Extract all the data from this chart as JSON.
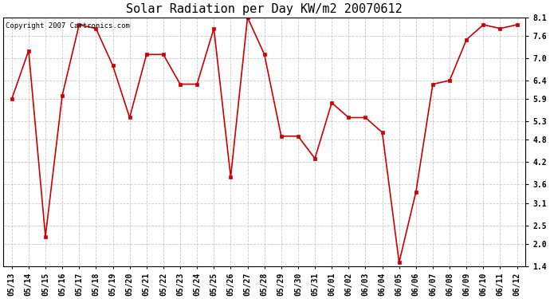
{
  "title": "Solar Radiation per Day KW/m2 20070612",
  "copyright": "Copyright 2007 Cartronics.com",
  "x_labels": [
    "05/13",
    "05/14",
    "05/15",
    "05/16",
    "05/17",
    "05/18",
    "05/19",
    "05/20",
    "05/21",
    "05/22",
    "05/23",
    "05/24",
    "05/25",
    "05/26",
    "05/27",
    "05/28",
    "05/29",
    "05/30",
    "05/31",
    "06/01",
    "06/02",
    "06/03",
    "06/04",
    "06/05",
    "06/06",
    "06/07",
    "06/08",
    "06/09",
    "06/10",
    "06/11",
    "06/12"
  ],
  "y_values": [
    5.9,
    7.2,
    2.2,
    6.0,
    7.9,
    7.8,
    6.8,
    5.4,
    7.1,
    7.1,
    6.3,
    6.3,
    7.8,
    3.8,
    8.1,
    7.1,
    4.9,
    4.9,
    4.3,
    5.8,
    5.4,
    5.4,
    5.0,
    1.5,
    3.4,
    6.3,
    6.4,
    7.5,
    7.9,
    7.8,
    7.9
  ],
  "line_color": "#cc0000",
  "marker_color": "#cc0000",
  "bg_color": "#ffffff",
  "plot_bg_color": "#ffffff",
  "grid_color": "#bbbbbb",
  "ylim": [
    1.4,
    8.1
  ],
  "yticks": [
    1.4,
    2.0,
    2.5,
    3.1,
    3.6,
    4.2,
    4.8,
    5.3,
    5.9,
    6.4,
    7.0,
    7.6,
    8.1
  ],
  "title_fontsize": 11,
  "tick_fontsize": 7,
  "copyright_fontsize": 6.5
}
